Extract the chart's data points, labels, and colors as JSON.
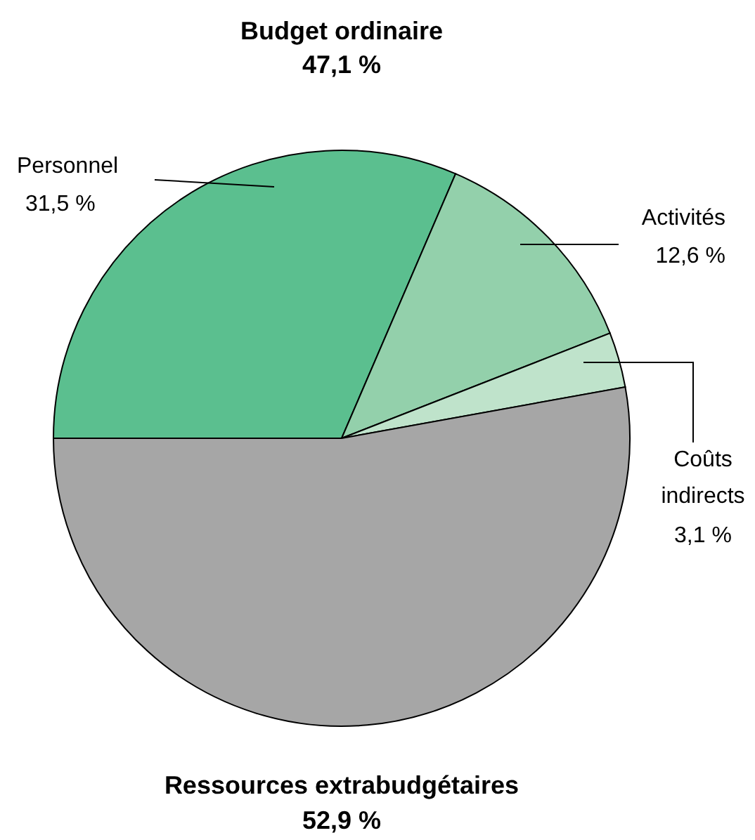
{
  "chart_data": {
    "type": "pie",
    "title": "Budget ordinaire",
    "subtitle": "47,1 %",
    "categories": [
      "Personnel",
      "Activités",
      "Coûts indirects",
      "Ressources extrabudgétaires"
    ],
    "values": [
      31.5,
      12.6,
      3.1,
      52.9
    ],
    "value_labels": [
      "31,5 %",
      "12,6 %",
      "3,1 %",
      "52,9 %"
    ],
    "colors": [
      "#5bbf8f",
      "#93d0ab",
      "#bfe3cb",
      "#a6a6a6"
    ]
  }
}
